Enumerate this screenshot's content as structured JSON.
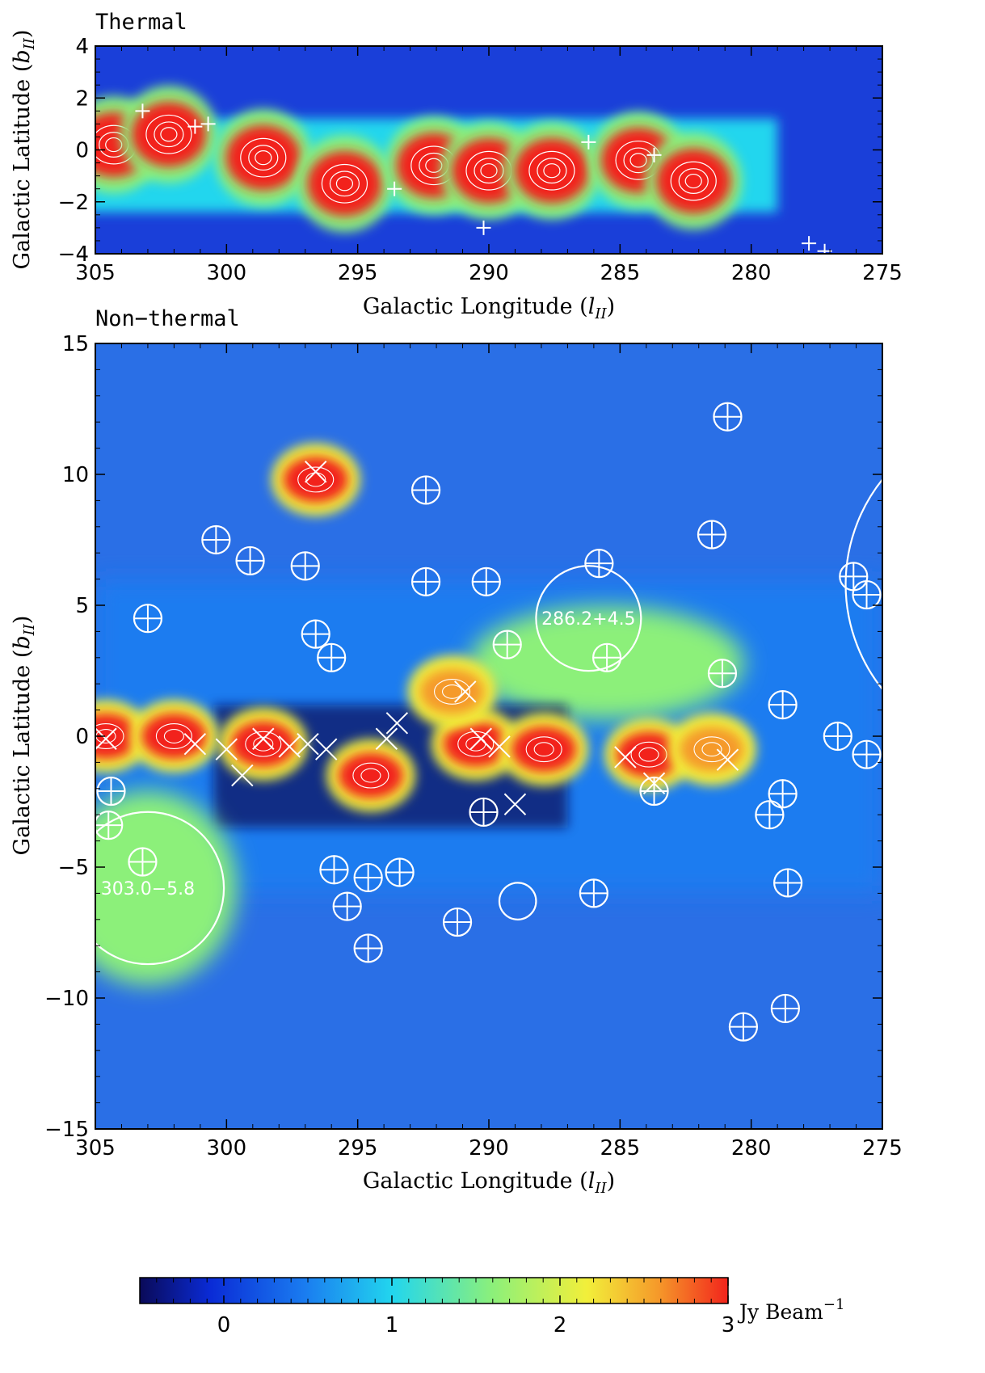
{
  "chart_data": [
    {
      "type": "heatmap",
      "title": "Thermal",
      "xlabel": "Galactic Longitude",
      "xlabel_sub": "lII",
      "ylabel": "Galactic Latitude",
      "ylabel_sub": "bII",
      "xlim": [
        305,
        275
      ],
      "ylim": [
        -4,
        4
      ],
      "xticks": [
        305,
        300,
        295,
        290,
        285,
        280,
        275
      ],
      "yticks": [
        4,
        2,
        0,
        -2,
        -4
      ],
      "emission_band": {
        "l_start": 305,
        "l_end": 279,
        "b_center": -0.6,
        "b_halfwidth": 1.8
      },
      "hot_regions": [
        {
          "l": 304.3,
          "b": 0.2,
          "level": 3.0
        },
        {
          "l": 302.2,
          "b": 0.6,
          "level": 2.8
        },
        {
          "l": 298.6,
          "b": -0.3,
          "level": 3.0
        },
        {
          "l": 295.5,
          "b": -1.3,
          "level": 3.0
        },
        {
          "l": 292.1,
          "b": -0.6,
          "level": 3.0
        },
        {
          "l": 290.0,
          "b": -0.8,
          "level": 3.0
        },
        {
          "l": 287.6,
          "b": -0.8,
          "level": 3.0
        },
        {
          "l": 284.3,
          "b": -0.4,
          "level": 3.0
        },
        {
          "l": 282.2,
          "b": -1.2,
          "level": 3.0
        }
      ],
      "crosses": [
        {
          "l": 303.2,
          "b": 1.5
        },
        {
          "l": 301.2,
          "b": 0.9
        },
        {
          "l": 300.7,
          "b": 1.0
        },
        {
          "l": 293.6,
          "b": -1.5
        },
        {
          "l": 290.2,
          "b": -3.0
        },
        {
          "l": 286.2,
          "b": 0.3
        },
        {
          "l": 283.7,
          "b": -0.2
        },
        {
          "l": 277.8,
          "b": -3.6
        },
        {
          "l": 277.2,
          "b": -3.9
        }
      ]
    },
    {
      "type": "heatmap",
      "title": "Non−thermal",
      "xlabel": "Galactic Longitude",
      "xlabel_sub": "lII",
      "ylabel": "Galactic Latitude",
      "ylabel_sub": "bII",
      "xlim": [
        305,
        275
      ],
      "ylim": [
        -15,
        15
      ],
      "xticks": [
        305,
        300,
        295,
        290,
        285,
        280,
        275
      ],
      "yticks": [
        15,
        10,
        5,
        0,
        -5,
        -10,
        -15
      ],
      "hot_regions": [
        {
          "l": 304.6,
          "b": 0.0,
          "level": 3.0
        },
        {
          "l": 302.0,
          "b": 0.0,
          "level": 2.8
        },
        {
          "l": 298.6,
          "b": -0.3,
          "level": 2.9
        },
        {
          "l": 296.6,
          "b": 9.8,
          "level": 3.0
        },
        {
          "l": 294.5,
          "b": -1.5,
          "level": 2.9
        },
        {
          "l": 290.5,
          "b": -0.3,
          "level": 3.0
        },
        {
          "l": 287.9,
          "b": -0.5,
          "level": 3.0
        },
        {
          "l": 283.9,
          "b": -0.7,
          "level": 3.0
        },
        {
          "l": 281.5,
          "b": -0.5,
          "level": 2.7
        },
        {
          "l": 291.4,
          "b": 1.7,
          "level": 2.6
        }
      ],
      "circled_crosses": [
        {
          "l": 300.4,
          "b": 7.5
        },
        {
          "l": 299.1,
          "b": 6.7
        },
        {
          "l": 297.0,
          "b": 6.5
        },
        {
          "l": 292.4,
          "b": 9.4
        },
        {
          "l": 292.4,
          "b": 5.9
        },
        {
          "l": 290.1,
          "b": 5.9
        },
        {
          "l": 285.8,
          "b": 6.6
        },
        {
          "l": 281.5,
          "b": 7.7
        },
        {
          "l": 280.9,
          "b": 12.2
        },
        {
          "l": 276.1,
          "b": 6.1
        },
        {
          "l": 275.6,
          "b": 5.4
        },
        {
          "l": 303.0,
          "b": 4.5
        },
        {
          "l": 296.6,
          "b": 3.9
        },
        {
          "l": 296.0,
          "b": 3.0
        },
        {
          "l": 289.3,
          "b": 3.5
        },
        {
          "l": 285.5,
          "b": 3.0
        },
        {
          "l": 281.1,
          "b": 2.4
        },
        {
          "l": 278.8,
          "b": 1.2
        },
        {
          "l": 276.7,
          "b": 0.0
        },
        {
          "l": 275.6,
          "b": -0.7
        },
        {
          "l": 304.4,
          "b": -2.1
        },
        {
          "l": 304.5,
          "b": -3.4
        },
        {
          "l": 303.2,
          "b": -4.8
        },
        {
          "l": 290.2,
          "b": -2.9
        },
        {
          "l": 283.7,
          "b": -2.1
        },
        {
          "l": 279.3,
          "b": -3.0
        },
        {
          "l": 278.8,
          "b": -2.2
        },
        {
          "l": 278.6,
          "b": -5.6
        },
        {
          "l": 295.9,
          "b": -5.1
        },
        {
          "l": 295.4,
          "b": -6.5
        },
        {
          "l": 294.6,
          "b": -5.4
        },
        {
          "l": 293.4,
          "b": -5.2
        },
        {
          "l": 294.6,
          "b": -8.1
        },
        {
          "l": 291.2,
          "b": -7.1
        },
        {
          "l": 286.0,
          "b": -6.0
        },
        {
          "l": 280.3,
          "b": -11.1
        },
        {
          "l": 278.7,
          "b": -10.4
        }
      ],
      "x_marks": [
        {
          "l": 304.6,
          "b": -0.1
        },
        {
          "l": 301.2,
          "b": -0.3
        },
        {
          "l": 300.0,
          "b": -0.5
        },
        {
          "l": 299.4,
          "b": -1.5
        },
        {
          "l": 298.6,
          "b": -0.1
        },
        {
          "l": 297.6,
          "b": -0.4
        },
        {
          "l": 296.9,
          "b": -0.3
        },
        {
          "l": 296.2,
          "b": -0.5
        },
        {
          "l": 293.5,
          "b": 0.5
        },
        {
          "l": 293.9,
          "b": -0.1
        },
        {
          "l": 296.6,
          "b": 10.1
        },
        {
          "l": 290.9,
          "b": 1.7
        },
        {
          "l": 290.3,
          "b": -0.1
        },
        {
          "l": 289.6,
          "b": -0.4
        },
        {
          "l": 289.0,
          "b": -2.6
        },
        {
          "l": 284.8,
          "b": -0.8
        },
        {
          "l": 280.9,
          "b": -0.9
        },
        {
          "l": 283.7,
          "b": -1.8
        }
      ],
      "big_circles": [
        {
          "l": 286.2,
          "b": 4.5,
          "r_deg": 2.0,
          "label": "286.2+4.5"
        },
        {
          "l": 303.0,
          "b": -5.8,
          "r_deg": 2.9,
          "label": "303.0−5.8"
        },
        {
          "l": 270.0,
          "b": 5.8,
          "r_deg": 6.4,
          "label": ""
        },
        {
          "l": 288.9,
          "b": -6.3,
          "r_deg": 0.7,
          "label": ""
        }
      ]
    }
  ],
  "colorbar": {
    "min": -0.5,
    "max": 3.0,
    "ticks": [
      "0",
      "1",
      "2",
      "3"
    ],
    "tick_values": [
      0,
      1,
      2,
      3
    ],
    "unit_text": "Jy Beam",
    "unit_exp": "−1",
    "colormap": [
      "#0a0a58",
      "#0a2bd6",
      "#1a7cf0",
      "#22d6ee",
      "#8cf07a",
      "#f2ef3a",
      "#f59a2a",
      "#f2241c"
    ]
  },
  "background_color": "#1a3fd9",
  "contour_color": "#ffffff"
}
